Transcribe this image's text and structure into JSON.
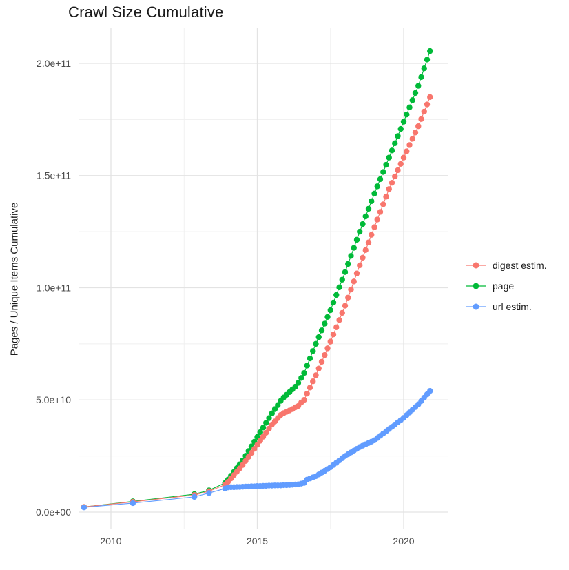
{
  "chart_data": {
    "type": "scatter",
    "geom": "point+line",
    "title": "Crawl Size Cumulative",
    "xlabel": "",
    "ylabel": "Pages / Unique Items Cumulative",
    "x_ticks": [
      2010,
      2015,
      2020
    ],
    "x_tick_labels": [
      "2010",
      "2015",
      "2020"
    ],
    "x_minor_ticks": [
      2012.5,
      2017.5
    ],
    "y_ticks": [
      0,
      50000000000.0,
      100000000000.0,
      150000000000.0,
      200000000000.0
    ],
    "y_tick_labels": [
      "0.0e+00",
      "5.0e+10",
      "1.0e+11",
      "1.5e+11",
      "2.0e+11"
    ],
    "y_minor_ticks": [
      25000000000.0,
      75000000000.0,
      125000000000.0,
      175000000000.0
    ],
    "xlim": [
      2008.9,
      2021.5
    ],
    "ylim": [
      -7500000000.0,
      216000000000.0
    ],
    "grid": true,
    "legend_position": "right",
    "background": "#FFFFFF",
    "series": [
      {
        "name": "digest estim.",
        "color": "#F8766D",
        "points": [
          [
            2009.08,
            2300000000.0
          ],
          [
            2010.75,
            4600000000.0
          ],
          [
            2012.85,
            7600000000.0
          ],
          [
            2013.35,
            9300000000.0
          ],
          [
            2013.9,
            12200000000.0
          ],
          [
            2014.0,
            13500000000.0
          ],
          [
            2014.1,
            15000000000.0
          ],
          [
            2014.2,
            16500000000.0
          ],
          [
            2014.3,
            18000000000.0
          ],
          [
            2014.4,
            19500000000.0
          ],
          [
            2014.5,
            21000000000.0
          ],
          [
            2014.6,
            22800000000.0
          ],
          [
            2014.7,
            24600000000.0
          ],
          [
            2014.8,
            26400000000.0
          ],
          [
            2014.9,
            28200000000.0
          ],
          [
            2015.0,
            30000000000.0
          ],
          [
            2015.1,
            31800000000.0
          ],
          [
            2015.2,
            33600000000.0
          ],
          [
            2015.3,
            35400000000.0
          ],
          [
            2015.4,
            37200000000.0
          ],
          [
            2015.5,
            39000000000.0
          ],
          [
            2015.6,
            40400000000.0
          ],
          [
            2015.7,
            41900000000.0
          ],
          [
            2015.8,
            43300000000.0
          ],
          [
            2015.9,
            44100000000.0
          ],
          [
            2016.0,
            44700000000.0
          ],
          [
            2016.1,
            45300000000.0
          ],
          [
            2016.2,
            45900000000.0
          ],
          [
            2016.3,
            46700000000.0
          ],
          [
            2016.4,
            47300000000.0
          ],
          [
            2016.5,
            48800000000.0
          ],
          [
            2016.6,
            50000000000.0
          ],
          [
            2016.7,
            52800000000.0
          ],
          [
            2016.8,
            55500000000.0
          ],
          [
            2016.9,
            58300000000.0
          ],
          [
            2017.0,
            61000000000.0
          ],
          [
            2017.1,
            64000000000.0
          ],
          [
            2017.2,
            67000000000.0
          ],
          [
            2017.3,
            70000000000.0
          ],
          [
            2017.4,
            73000000000.0
          ],
          [
            2017.5,
            76000000000.0
          ],
          [
            2017.6,
            79200000000.0
          ],
          [
            2017.7,
            82400000000.0
          ],
          [
            2017.8,
            85600000000.0
          ],
          [
            2017.9,
            88800000000.0
          ],
          [
            2018.0,
            92000000000.0
          ],
          [
            2018.1,
            95600000000.0
          ],
          [
            2018.2,
            99200000000.0
          ],
          [
            2018.3,
            102800000000.0
          ],
          [
            2018.4,
            106400000000.0
          ],
          [
            2018.5,
            110000000000.0
          ],
          [
            2018.6,
            113400000000.0
          ],
          [
            2018.7,
            116800000000.0
          ],
          [
            2018.8,
            120200000000.0
          ],
          [
            2018.9,
            123600000000.0
          ],
          [
            2019.0,
            127000000000.0
          ],
          [
            2019.1,
            130400000000.0
          ],
          [
            2019.2,
            133800000000.0
          ],
          [
            2019.3,
            137200000000.0
          ],
          [
            2019.4,
            140600000000.0
          ],
          [
            2019.5,
            144000000000.0
          ],
          [
            2019.6,
            146800000000.0
          ],
          [
            2019.7,
            149600000000.0
          ],
          [
            2019.8,
            152400000000.0
          ],
          [
            2019.9,
            155200000000.0
          ],
          [
            2020.0,
            158000000000.0
          ],
          [
            2020.1,
            160800000000.0
          ],
          [
            2020.2,
            163600000000.0
          ],
          [
            2020.3,
            166400000000.0
          ],
          [
            2020.4,
            169200000000.0
          ],
          [
            2020.5,
            172000000000.0
          ],
          [
            2020.6,
            175200000000.0
          ],
          [
            2020.7,
            178500000000.0
          ],
          [
            2020.8,
            181700000000.0
          ],
          [
            2020.9,
            185000000000.0
          ]
        ]
      },
      {
        "name": "page",
        "color": "#00BA38",
        "points": [
          [
            2009.08,
            2300000000.0
          ],
          [
            2010.75,
            4800000000.0
          ],
          [
            2012.85,
            8000000000.0
          ],
          [
            2013.35,
            9700000000.0
          ],
          [
            2013.9,
            13000000000.0
          ],
          [
            2014.0,
            14500000000.0
          ],
          [
            2014.1,
            16200000000.0
          ],
          [
            2014.2,
            17900000000.0
          ],
          [
            2014.3,
            19600000000.0
          ],
          [
            2014.4,
            21300000000.0
          ],
          [
            2014.5,
            23000000000.0
          ],
          [
            2014.6,
            25100000000.0
          ],
          [
            2014.7,
            27200000000.0
          ],
          [
            2014.8,
            29300000000.0
          ],
          [
            2014.9,
            31400000000.0
          ],
          [
            2015.0,
            33500000000.0
          ],
          [
            2015.1,
            35600000000.0
          ],
          [
            2015.2,
            37700000000.0
          ],
          [
            2015.3,
            39800000000.0
          ],
          [
            2015.4,
            41900000000.0
          ],
          [
            2015.5,
            44000000000.0
          ],
          [
            2015.6,
            45900000000.0
          ],
          [
            2015.7,
            47700000000.0
          ],
          [
            2015.8,
            49600000000.0
          ],
          [
            2015.9,
            51100000000.0
          ],
          [
            2016.0,
            52300000000.0
          ],
          [
            2016.1,
            53500000000.0
          ],
          [
            2016.2,
            54700000000.0
          ],
          [
            2016.3,
            55900000000.0
          ],
          [
            2016.4,
            57600000000.0
          ],
          [
            2016.5,
            59800000000.0
          ],
          [
            2016.6,
            62000000000.0
          ],
          [
            2016.7,
            65300000000.0
          ],
          [
            2016.8,
            68500000000.0
          ],
          [
            2016.9,
            71800000000.0
          ],
          [
            2017.0,
            75000000000.0
          ],
          [
            2017.1,
            78000000000.0
          ],
          [
            2017.2,
            81000000000.0
          ],
          [
            2017.3,
            84000000000.0
          ],
          [
            2017.4,
            87000000000.0
          ],
          [
            2017.5,
            90000000000.0
          ],
          [
            2017.6,
            93400000000.0
          ],
          [
            2017.7,
            96800000000.0
          ],
          [
            2017.8,
            100200000000.0
          ],
          [
            2017.9,
            103600000000.0
          ],
          [
            2018.0,
            107000000000.0
          ],
          [
            2018.1,
            110600000000.0
          ],
          [
            2018.2,
            114200000000.0
          ],
          [
            2018.3,
            117800000000.0
          ],
          [
            2018.4,
            121400000000.0
          ],
          [
            2018.5,
            125000000000.0
          ],
          [
            2018.6,
            128400000000.0
          ],
          [
            2018.7,
            131800000000.0
          ],
          [
            2018.8,
            135200000000.0
          ],
          [
            2018.9,
            138600000000.0
          ],
          [
            2019.0,
            142000000000.0
          ],
          [
            2019.1,
            145200000000.0
          ],
          [
            2019.2,
            148400000000.0
          ],
          [
            2019.3,
            151600000000.0
          ],
          [
            2019.4,
            154800000000.0
          ],
          [
            2019.5,
            158000000000.0
          ],
          [
            2019.6,
            161200000000.0
          ],
          [
            2019.7,
            164400000000.0
          ],
          [
            2019.8,
            167600000000.0
          ],
          [
            2019.9,
            170800000000.0
          ],
          [
            2020.0,
            174000000000.0
          ],
          [
            2020.1,
            177200000000.0
          ],
          [
            2020.2,
            180400000000.0
          ],
          [
            2020.3,
            183600000000.0
          ],
          [
            2020.4,
            186800000000.0
          ],
          [
            2020.5,
            190000000000.0
          ],
          [
            2020.6,
            193900000000.0
          ],
          [
            2020.7,
            197800000000.0
          ],
          [
            2020.8,
            201700000000.0
          ],
          [
            2020.9,
            205500000000.0
          ]
        ]
      },
      {
        "name": "url estim.",
        "color": "#619CFF",
        "points": [
          [
            2009.08,
            2100000000.0
          ],
          [
            2010.75,
            4000000000.0
          ],
          [
            2012.85,
            6800000000.0
          ],
          [
            2013.35,
            8500000000.0
          ],
          [
            2013.9,
            10500000000.0
          ],
          [
            2014.0,
            11000000000.0
          ],
          [
            2014.1,
            11100000000.0
          ],
          [
            2014.2,
            11100000000.0
          ],
          [
            2014.3,
            11200000000.0
          ],
          [
            2014.4,
            11200000000.0
          ],
          [
            2014.5,
            11300000000.0
          ],
          [
            2014.6,
            11400000000.0
          ],
          [
            2014.7,
            11400000000.0
          ],
          [
            2014.8,
            11500000000.0
          ],
          [
            2014.9,
            11500000000.0
          ],
          [
            2015.0,
            11600000000.0
          ],
          [
            2015.1,
            11600000000.0
          ],
          [
            2015.2,
            11700000000.0
          ],
          [
            2015.3,
            11700000000.0
          ],
          [
            2015.4,
            11800000000.0
          ],
          [
            2015.5,
            11800000000.0
          ],
          [
            2015.6,
            11900000000.0
          ],
          [
            2015.7,
            11900000000.0
          ],
          [
            2015.8,
            11900000000.0
          ],
          [
            2015.9,
            12000000000.0
          ],
          [
            2016.0,
            12000000000.0
          ],
          [
            2016.1,
            12100000000.0
          ],
          [
            2016.2,
            12200000000.0
          ],
          [
            2016.3,
            12300000000.0
          ],
          [
            2016.4,
            12400000000.0
          ],
          [
            2016.5,
            12700000000.0
          ],
          [
            2016.6,
            13000000000.0
          ],
          [
            2016.7,
            14500000000.0
          ],
          [
            2016.8,
            15000000000.0
          ],
          [
            2016.9,
            15500000000.0
          ],
          [
            2017.0,
            16000000000.0
          ],
          [
            2017.1,
            16800000000.0
          ],
          [
            2017.2,
            17600000000.0
          ],
          [
            2017.3,
            18400000000.0
          ],
          [
            2017.4,
            19200000000.0
          ],
          [
            2017.5,
            20000000000.0
          ],
          [
            2017.6,
            21000000000.0
          ],
          [
            2017.7,
            22000000000.0
          ],
          [
            2017.8,
            23000000000.0
          ],
          [
            2017.9,
            24000000000.0
          ],
          [
            2018.0,
            25000000000.0
          ],
          [
            2018.1,
            25800000000.0
          ],
          [
            2018.2,
            26600000000.0
          ],
          [
            2018.3,
            27400000000.0
          ],
          [
            2018.4,
            28200000000.0
          ],
          [
            2018.5,
            29000000000.0
          ],
          [
            2018.6,
            29600000000.0
          ],
          [
            2018.7,
            30200000000.0
          ],
          [
            2018.8,
            30800000000.0
          ],
          [
            2018.9,
            31400000000.0
          ],
          [
            2019.0,
            32000000000.0
          ],
          [
            2019.1,
            33000000000.0
          ],
          [
            2019.2,
            34000000000.0
          ],
          [
            2019.3,
            35000000000.0
          ],
          [
            2019.4,
            36000000000.0
          ],
          [
            2019.5,
            37000000000.0
          ],
          [
            2019.6,
            38000000000.0
          ],
          [
            2019.7,
            39000000000.0
          ],
          [
            2019.8,
            40000000000.0
          ],
          [
            2019.9,
            41000000000.0
          ],
          [
            2020.0,
            42000000000.0
          ],
          [
            2020.1,
            43200000000.0
          ],
          [
            2020.2,
            44400000000.0
          ],
          [
            2020.3,
            45600000000.0
          ],
          [
            2020.4,
            46800000000.0
          ],
          [
            2020.5,
            48000000000.0
          ],
          [
            2020.6,
            49500000000.0
          ],
          [
            2020.7,
            51000000000.0
          ],
          [
            2020.8,
            52500000000.0
          ],
          [
            2020.9,
            54000000000.0
          ]
        ]
      }
    ]
  }
}
